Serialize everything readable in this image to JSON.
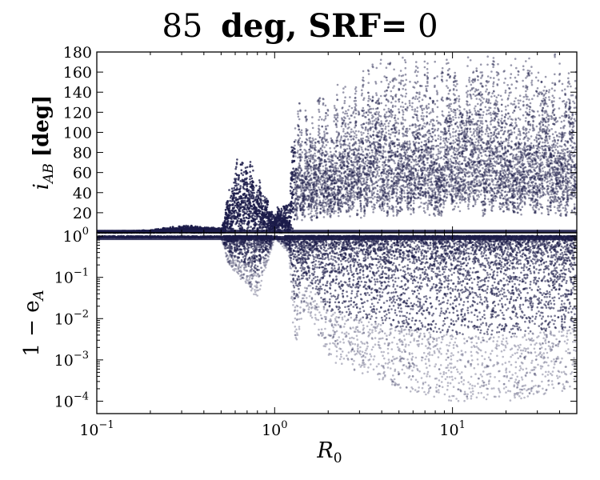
{
  "figure": {
    "title_parts": [
      "85",
      "deg, SRF=",
      "0"
    ]
  },
  "chart_data": [
    {
      "type": "scatter",
      "panel": "top",
      "ylabel_parts": [
        "i",
        "AB",
        "[deg]"
      ],
      "xlabel": "",
      "xscale": "log",
      "xlim": [
        0.1,
        50
      ],
      "ylim": [
        0,
        180
      ],
      "yticks": [
        20,
        40,
        60,
        80,
        100,
        120,
        140,
        160,
        180
      ],
      "ytick_labels": [
        "20",
        "40",
        "60",
        "80",
        "100",
        "120",
        "140",
        "160",
        "180"
      ],
      "marker_color": "#1c1c4a",
      "grid": false,
      "series": [
        {
          "envelope_x": [
            0.1,
            0.2,
            0.3,
            0.4,
            0.5,
            0.55,
            0.6,
            0.7,
            0.8,
            1.0,
            1.2,
            1.3,
            1.5,
            2,
            3,
            5,
            10,
            20,
            50
          ],
          "envelope_ymax": [
            1,
            3,
            8,
            6,
            5,
            40,
            75,
            80,
            65,
            26,
            30,
            150,
            125,
            160,
            170,
            178,
            180,
            180,
            180
          ]
        }
      ]
    },
    {
      "type": "scatter",
      "panel": "bottom",
      "ylabel": "1 − e",
      "ylabel_sub": "A",
      "xlabel": "R",
      "xlabel_sub": "0",
      "xscale": "log",
      "yscale": "log",
      "xlim": [
        0.1,
        50
      ],
      "ylim": [
        5e-05,
        1.2
      ],
      "yticks": [
        0.0001,
        0.001,
        0.01,
        0.1,
        1
      ],
      "ytick_labels": [
        [
          "10",
          "−4"
        ],
        [
          "10",
          "−3"
        ],
        [
          "10",
          "−2"
        ],
        [
          "10",
          "−1"
        ],
        [
          "10",
          "0"
        ]
      ],
      "xticks": [
        0.1,
        1,
        10
      ],
      "xtick_labels": [
        [
          "10",
          "−1"
        ],
        [
          "10",
          "0"
        ],
        [
          "10",
          "1"
        ]
      ],
      "marker_color": "#1c1c4a",
      "grid": false,
      "series": [
        {
          "envelope_x": [
            0.1,
            0.5,
            0.55,
            0.8,
            1.0,
            1.2,
            1.3,
            1.5,
            2,
            5,
            10,
            20,
            50
          ],
          "envelope_ymin": [
            0.9,
            0.9,
            0.2,
            0.03,
            0.9,
            0.4,
            0.002,
            0.02,
            0.001,
            0.0002,
            0.0001,
            0.0001,
            0.0002
          ]
        }
      ]
    }
  ]
}
